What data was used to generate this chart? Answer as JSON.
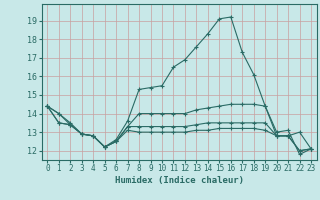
{
  "xlabel": "Humidex (Indice chaleur)",
  "background_color": "#c8e8e8",
  "grid_color": "#c8a0a0",
  "line_color": "#2a6b65",
  "xlim": [
    -0.5,
    23.5
  ],
  "ylim": [
    11.5,
    19.9
  ],
  "yticks": [
    12,
    13,
    14,
    15,
    16,
    17,
    18,
    19
  ],
  "xticks": [
    0,
    1,
    2,
    3,
    4,
    5,
    6,
    7,
    8,
    9,
    10,
    11,
    12,
    13,
    14,
    15,
    16,
    17,
    18,
    19,
    20,
    21,
    22,
    23
  ],
  "series": [
    [
      14.4,
      14.0,
      13.5,
      12.9,
      12.8,
      12.2,
      12.6,
      13.6,
      15.3,
      15.4,
      15.5,
      16.5,
      16.9,
      17.6,
      18.3,
      19.1,
      19.2,
      17.3,
      16.1,
      14.4,
      13.0,
      13.1,
      11.8,
      12.1
    ],
    [
      14.4,
      14.0,
      13.4,
      12.9,
      12.8,
      12.2,
      12.5,
      13.3,
      14.0,
      14.0,
      14.0,
      14.0,
      14.0,
      14.2,
      14.3,
      14.4,
      14.5,
      14.5,
      14.5,
      14.4,
      12.8,
      12.8,
      13.0,
      12.1
    ],
    [
      14.4,
      13.5,
      13.4,
      12.9,
      12.8,
      12.2,
      12.5,
      13.3,
      13.3,
      13.3,
      13.3,
      13.3,
      13.3,
      13.4,
      13.5,
      13.5,
      13.5,
      13.5,
      13.5,
      13.5,
      12.8,
      12.8,
      12.0,
      12.1
    ],
    [
      14.4,
      13.5,
      13.4,
      12.9,
      12.8,
      12.2,
      12.5,
      13.1,
      13.0,
      13.0,
      13.0,
      13.0,
      13.0,
      13.1,
      13.1,
      13.2,
      13.2,
      13.2,
      13.2,
      13.1,
      12.8,
      12.8,
      12.0,
      12.1
    ]
  ]
}
